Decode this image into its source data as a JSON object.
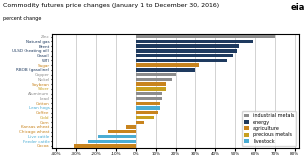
{
  "chart_data": {
    "type": "bar",
    "orientation": "horizontal",
    "title": "Commodity futures price changes (January 1 to December 30, 2016)",
    "subtitle": "percent change",
    "annotations": [
      "eia"
    ],
    "categories": [
      "Zinc",
      "Natural gas",
      "Brent",
      "ULSD (heating oil)",
      "Gasoil",
      "WTI",
      "Sugar",
      "RBOB (gasoline)",
      "Copper",
      "Nickel",
      "Soybean",
      "Silver",
      "Aluminum",
      "Lead",
      "Cotton",
      "Lean hogs",
      "Coffee",
      "Gold",
      "Corn",
      "Kansas wheat",
      "Chicago wheat",
      "Live cattle",
      "Feeder cattle",
      "Cocoa"
    ],
    "series": [
      {
        "name": "industrial metals",
        "color": "#8c8c8c",
        "values": [
          0.7,
          null,
          null,
          null,
          null,
          null,
          null,
          null,
          0.2,
          0.18,
          null,
          null,
          0.13,
          0.13,
          null,
          null,
          null,
          null,
          null,
          null,
          null,
          null,
          null,
          null
        ]
      },
      {
        "name": "energy",
        "color": "#1e3a5f",
        "values": [
          null,
          0.59,
          0.52,
          0.51,
          0.49,
          0.46,
          null,
          0.3,
          null,
          null,
          null,
          null,
          null,
          null,
          null,
          null,
          null,
          null,
          null,
          null,
          null,
          null,
          null,
          null
        ]
      },
      {
        "name": "agriculture",
        "color": "#c8841e",
        "values": [
          null,
          null,
          null,
          null,
          null,
          null,
          0.32,
          null,
          null,
          null,
          0.15,
          null,
          null,
          null,
          0.12,
          null,
          0.11,
          null,
          0.04,
          -0.05,
          -0.14,
          null,
          null,
          -0.31
        ]
      },
      {
        "name": "precious metals",
        "color": "#c8a020",
        "values": [
          null,
          null,
          null,
          null,
          null,
          null,
          null,
          null,
          null,
          null,
          null,
          0.15,
          null,
          null,
          null,
          null,
          null,
          0.09,
          null,
          null,
          null,
          null,
          null,
          null
        ]
      },
      {
        "name": "livestock",
        "color": "#4badd4",
        "values": [
          null,
          null,
          null,
          null,
          null,
          null,
          null,
          null,
          null,
          null,
          null,
          null,
          null,
          null,
          null,
          0.12,
          null,
          null,
          null,
          null,
          null,
          -0.19,
          -0.24,
          null
        ]
      }
    ],
    "xlim": [
      -0.42,
      0.82
    ],
    "xticks": [
      {
        "value": -0.4,
        "label": "-40%"
      },
      {
        "value": -0.3,
        "label": "-30%"
      },
      {
        "value": -0.2,
        "label": "-20%"
      },
      {
        "value": -0.1,
        "label": "-10%"
      },
      {
        "value": 0.0,
        "label": "0%"
      },
      {
        "value": 0.1,
        "label": "10%"
      },
      {
        "value": 0.2,
        "label": "20%"
      },
      {
        "value": 0.3,
        "label": "30%"
      },
      {
        "value": 0.4,
        "label": "40%"
      },
      {
        "value": 0.5,
        "label": "50%"
      },
      {
        "value": 0.6,
        "label": "60%"
      },
      {
        "value": 0.7,
        "label": "70%"
      },
      {
        "value": 0.8,
        "label": "80%"
      }
    ],
    "grid": true,
    "legend": "lower right"
  }
}
